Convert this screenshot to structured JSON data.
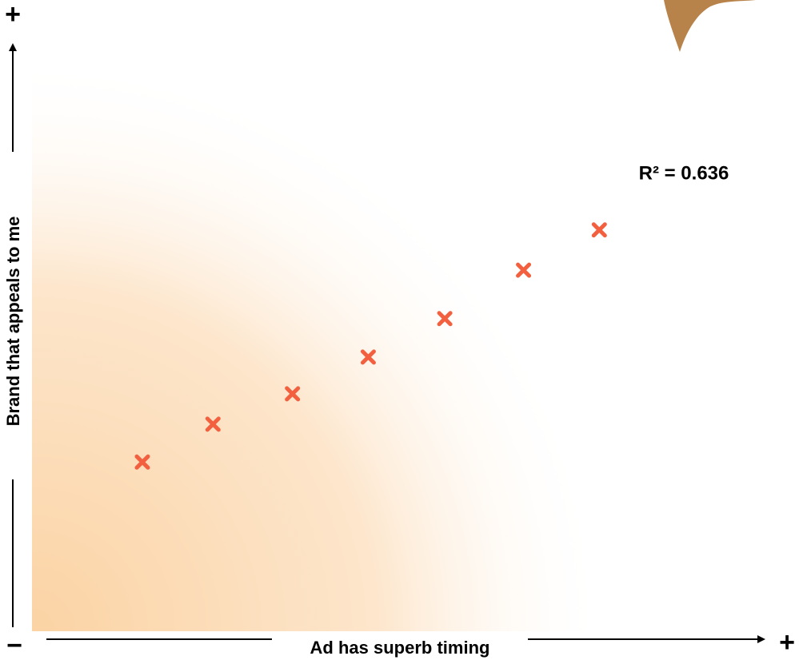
{
  "chart_data": {
    "type": "scatter",
    "x_axis_label": "Ad has superb timing",
    "y_axis_label": "Brand that appeals to me",
    "x_max_label": "+",
    "y_max_label": "+",
    "min_label": "−",
    "annotation": "R² = 0.636",
    "xlim": [
      0,
      100
    ],
    "ylim": [
      0,
      100
    ],
    "series": [
      {
        "color": "#f2603f",
        "x": [
          15,
          24.6,
          35.4,
          45.7,
          56.1,
          66.8,
          77.1
        ],
        "values": [
          29.0,
          35.5,
          40.7,
          47.0,
          53.6,
          61.9,
          68.8
        ]
      }
    ]
  }
}
